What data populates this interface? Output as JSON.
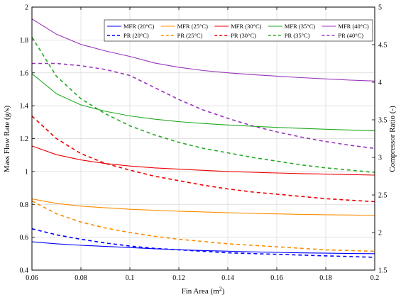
{
  "chart_data": {
    "type": "line",
    "xlabel": "Fin Area (m",
    "xlabel_sup": "2",
    "xlabel_close": ")",
    "ylabel": "Mass Flow Rate (g/s)",
    "y2label": "Compressor Ratio (-)",
    "xlim": [
      0.06,
      0.2
    ],
    "ylim": [
      0.4,
      2.0
    ],
    "y2lim": [
      1.5,
      5.0
    ],
    "grid": true,
    "legend_position": "top-right",
    "x_ticks": [
      "0.06",
      "0.08",
      "0.1",
      "0.12",
      "0.14",
      "0.16",
      "0.18",
      "0.2"
    ],
    "y_ticks": [
      "0.4",
      "0.6",
      "0.8",
      "1",
      "1.2",
      "1.4",
      "1.6",
      "1.8",
      "2"
    ],
    "y2_ticks": [
      "1.5",
      "2",
      "2.5",
      "3",
      "3.5",
      "4",
      "4.5",
      "5"
    ],
    "x": [
      0.06,
      0.07,
      0.08,
      0.09,
      0.1,
      0.11,
      0.12,
      0.13,
      0.14,
      0.15,
      0.16,
      0.17,
      0.18,
      0.19,
      0.2
    ],
    "series": [
      {
        "name": "MFR (20°C)",
        "axis": "left",
        "style": "solid",
        "color": "#0000ff",
        "values": [
          0.572,
          0.56,
          0.551,
          0.544,
          0.537,
          0.53,
          0.524,
          0.519,
          0.515,
          0.511,
          0.508,
          0.505,
          0.503,
          0.501,
          0.5
        ]
      },
      {
        "name": "MFR (25°C)",
        "axis": "left",
        "style": "solid",
        "color": "#ff8c00",
        "values": [
          0.833,
          0.806,
          0.789,
          0.779,
          0.77,
          0.764,
          0.758,
          0.754,
          0.749,
          0.745,
          0.742,
          0.739,
          0.737,
          0.735,
          0.733
        ]
      },
      {
        "name": "MFR (30°C)",
        "axis": "left",
        "style": "solid",
        "color": "#ee0000",
        "values": [
          1.155,
          1.102,
          1.07,
          1.048,
          1.033,
          1.022,
          1.014,
          1.007,
          1.0,
          0.995,
          0.991,
          0.987,
          0.984,
          0.981,
          0.978
        ]
      },
      {
        "name": "MFR (35°C)",
        "axis": "left",
        "style": "solid",
        "color": "#22aa22",
        "values": [
          1.595,
          1.473,
          1.405,
          1.366,
          1.338,
          1.318,
          1.303,
          1.292,
          1.283,
          1.275,
          1.268,
          1.262,
          1.257,
          1.252,
          1.248
        ]
      },
      {
        "name": "MFR (40°C)",
        "axis": "left",
        "style": "solid",
        "color": "#9933bb",
        "values": [
          1.928,
          1.835,
          1.773,
          1.733,
          1.7,
          1.66,
          1.634,
          1.614,
          1.6,
          1.589,
          1.58,
          1.571,
          1.563,
          1.556,
          1.55
        ]
      },
      {
        "name": "PR (20°C)",
        "axis": "right",
        "style": "dashed",
        "color": "#0000ff",
        "values": [
          2.05,
          1.97,
          1.91,
          1.86,
          1.82,
          1.79,
          1.77,
          1.75,
          1.73,
          1.72,
          1.71,
          1.7,
          1.69,
          1.68,
          1.67
        ]
      },
      {
        "name": "PR (25°C)",
        "axis": "right",
        "style": "dashed",
        "color": "#ff8c00",
        "values": [
          2.42,
          2.25,
          2.14,
          2.06,
          2.0,
          1.95,
          1.91,
          1.88,
          1.85,
          1.83,
          1.81,
          1.79,
          1.77,
          1.76,
          1.75
        ]
      },
      {
        "name": "PR (30°C)",
        "axis": "right",
        "style": "dashed",
        "color": "#ee0000",
        "values": [
          3.55,
          3.25,
          3.05,
          2.92,
          2.83,
          2.75,
          2.69,
          2.63,
          2.58,
          2.54,
          2.51,
          2.48,
          2.45,
          2.43,
          2.41
        ]
      },
      {
        "name": "PR (35°C)",
        "axis": "right",
        "style": "dashed",
        "color": "#22aa22",
        "values": [
          4.6,
          4.08,
          3.78,
          3.58,
          3.42,
          3.3,
          3.2,
          3.12,
          3.06,
          3.0,
          2.95,
          2.9,
          2.86,
          2.83,
          2.8
        ]
      },
      {
        "name": "PR (40°C)",
        "axis": "right",
        "style": "dashed",
        "color": "#9933bb",
        "values": [
          4.25,
          4.25,
          4.22,
          4.17,
          4.09,
          3.93,
          3.77,
          3.63,
          3.52,
          3.42,
          3.34,
          3.27,
          3.21,
          3.16,
          3.12
        ]
      }
    ]
  }
}
